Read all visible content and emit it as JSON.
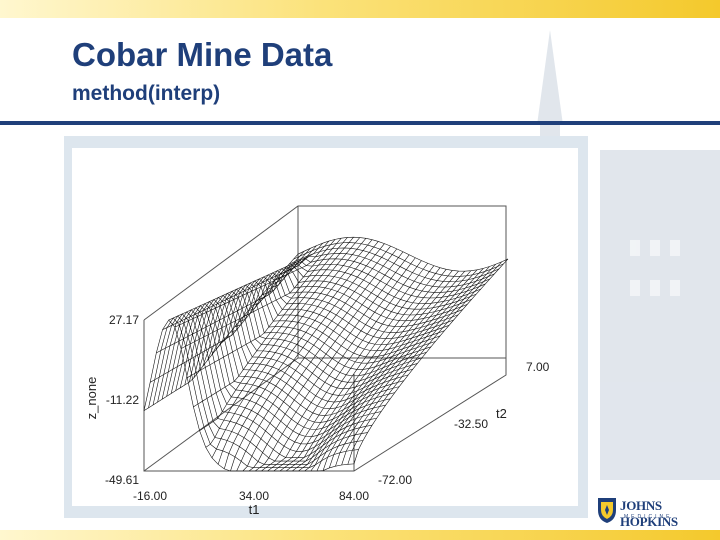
{
  "slide": {
    "title": "Cobar Mine Data",
    "subtitle": "method(interp)"
  },
  "logo": {
    "text": "JOHNS HOPKINS",
    "subtext": "MEDICINE"
  },
  "colors": {
    "title": "#1f3f7a",
    "rule": "#1f3f7a",
    "accent": "#f4c92c",
    "frame": "#dde6ee",
    "mesh": "#111111"
  },
  "chart_data": {
    "type": "surface",
    "title": "",
    "xlabel": "t1",
    "ylabel": "t2",
    "zlabel": "z_none",
    "xticks": [
      "-16.00",
      "34.00",
      "84.00"
    ],
    "yticks": [
      "-72.00",
      "-32.50",
      "7.00"
    ],
    "zticks": [
      "-49.61",
      "-11.22",
      "27.17"
    ],
    "xlim": [
      -16.0,
      84.0
    ],
    "ylim": [
      -72.0,
      7.0
    ],
    "zlim": [
      -49.61,
      27.17
    ],
    "surface_style": "wireframe",
    "grid": false,
    "legend": "none"
  }
}
